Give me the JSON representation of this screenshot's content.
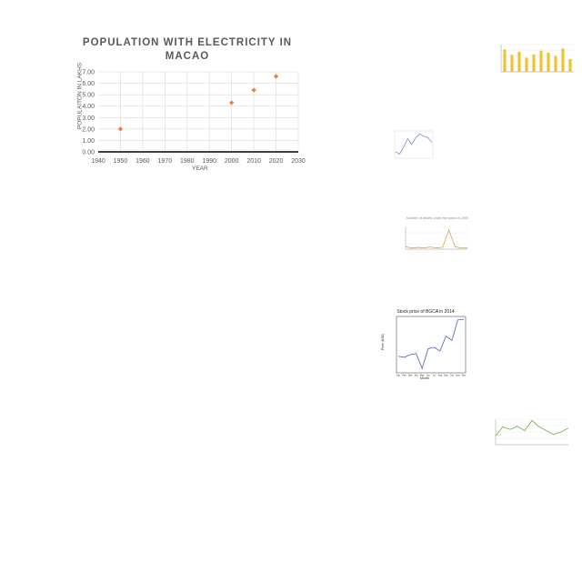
{
  "chart_data": [
    {
      "type": "scatter",
      "title": "POPULATION WITH ELECTRICITY IN\nMACAO",
      "xlabel": "YEAR",
      "ylabel": "POPULAITON IN LAKHS",
      "x": [
        1950,
        2000,
        2010,
        2020
      ],
      "y": [
        2.0,
        4.3,
        5.4,
        6.6
      ],
      "xlim": [
        1940,
        2030
      ],
      "ylim": [
        0,
        7
      ],
      "x_ticks": [
        "1940",
        "1950",
        "1960",
        "1970",
        "1980",
        "1990",
        "2000",
        "2010",
        "2020",
        "2030"
      ],
      "y_ticks": [
        "0.00",
        "1.00",
        "2.00",
        "3.00",
        "4.00",
        "5.00",
        "6.00",
        "7.00"
      ],
      "grid": true,
      "marker_color": "#ED7D31",
      "title_color": "#595959"
    },
    {
      "type": "bar",
      "title": "",
      "values": [
        0.82,
        0.62,
        0.74,
        0.52,
        0.64,
        0.78,
        0.7,
        0.58,
        0.85,
        0.47
      ],
      "ylim": [
        0,
        1
      ],
      "bar_color": "#F2C12E",
      "grid": true
    },
    {
      "type": "line",
      "title": "",
      "values": [
        0.2,
        0.1,
        0.4,
        0.75,
        0.5,
        0.8,
        0.95,
        0.85,
        0.8,
        0.6
      ],
      "ylim": [
        0,
        1
      ],
      "line_color": "#7B8BD6"
    },
    {
      "type": "line",
      "title": "Number of deaths under five years in 2009",
      "values": [
        0.12,
        0.05,
        0.08,
        0.06,
        0.1,
        0.06,
        0.09,
        0.88,
        0.12,
        0.05,
        0.06
      ],
      "ylim": [
        0,
        1
      ],
      "line_color": "#D9A35C",
      "grid": true
    },
    {
      "type": "line",
      "title": "Stock price of BGCA in 2014",
      "xlabel": "Month",
      "ylabel": "Price (USD)",
      "categories": [
        "Jan",
        "Feb",
        "Mar",
        "Apr",
        "May",
        "Jun",
        "Jul",
        "Aug",
        "Sep",
        "Oct",
        "Nov",
        "Dec"
      ],
      "values": [
        0.28,
        0.26,
        0.31,
        0.33,
        0.05,
        0.42,
        0.45,
        0.38,
        0.66,
        0.58,
        0.97,
        0.98
      ],
      "ylim": [
        0,
        1
      ],
      "line_color": "#4B5FBF"
    },
    {
      "type": "line",
      "title": "",
      "values": [
        0.35,
        0.7,
        0.6,
        0.72,
        0.55,
        0.95,
        0.7,
        0.55,
        0.4,
        0.5,
        0.65
      ],
      "ylim": [
        0,
        1
      ],
      "line_color": "#6FB03C",
      "grid": true
    }
  ]
}
